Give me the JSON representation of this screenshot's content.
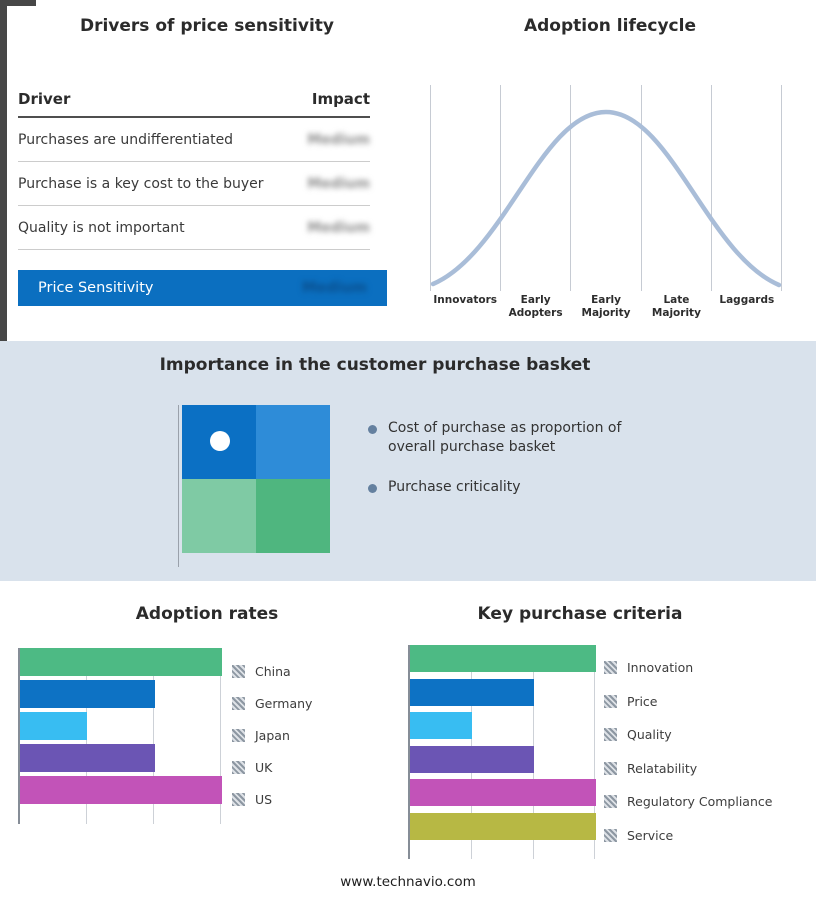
{
  "page": {
    "footer_url": "www.technavio.com"
  },
  "drivers_panel": {
    "title": "Drivers of price sensitivity",
    "columns": {
      "driver": "Driver",
      "impact": "Impact"
    },
    "rows": [
      {
        "driver": "Purchases are undifferentiated",
        "impact": "Medium"
      },
      {
        "driver": "Purchase is a key cost to the buyer",
        "impact": "Medium"
      },
      {
        "driver": "Quality is not important",
        "impact": "Medium"
      }
    ],
    "highlight_row": {
      "driver": "Price Sensitivity",
      "impact": "Medium"
    },
    "highlight_color": "#0b6fc0",
    "impact_values_blurred": true
  },
  "basket_panel": {
    "title": "Importance in the customer purchase basket",
    "bullets": [
      "Cost of purchase as proportion of overall purchase basket",
      "Purchase criticality"
    ],
    "quadrant_colors": {
      "top_left": "#0b70c4",
      "top_right": "#2e8cd8",
      "bottom_left": "#7fcaa4",
      "bottom_right": "#4fb67f"
    },
    "dot_position": "top-left quadrant"
  },
  "chart_data": [
    {
      "id": "lifecycle",
      "type": "line",
      "title": "Adoption lifecycle",
      "categories": [
        "Innovators",
        "Early Adopters",
        "Early Majority",
        "Late Majority",
        "Laggards"
      ],
      "shape": "bell curve rising from Innovators, peaking over Early Majority, falling to Laggards",
      "line_color": "#a9bdd8",
      "grid": true,
      "legend_position": "none"
    },
    {
      "id": "adoption",
      "type": "bar",
      "title": "Adoption rates",
      "orientation": "horizontal",
      "categories": [
        "China",
        "Germany",
        "Japan",
        "UK",
        "US"
      ],
      "values": [
        3,
        2,
        1,
        2,
        3
      ],
      "xlim": [
        0,
        3
      ],
      "colors": [
        "#4dba84",
        "#0d72c4",
        "#38bdf2",
        "#6b55b4",
        "#c253b8"
      ],
      "grid": true,
      "legend_position": "right"
    },
    {
      "id": "criteria",
      "type": "bar",
      "title": "Key purchase criteria",
      "orientation": "horizontal",
      "categories": [
        "Innovation",
        "Price",
        "Quality",
        "Relatability",
        "Regulatory Compliance",
        "Service"
      ],
      "values": [
        3,
        2,
        1,
        2,
        3,
        3
      ],
      "xlim": [
        0,
        3
      ],
      "colors": [
        "#4dba84",
        "#0d72c4",
        "#38bdf2",
        "#6b55b4",
        "#c253b8",
        "#b7b844"
      ],
      "grid": true,
      "legend_position": "right"
    }
  ]
}
